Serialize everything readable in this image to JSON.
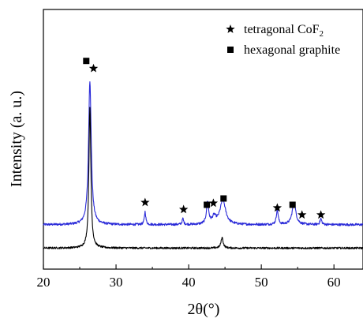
{
  "chart_data": {
    "type": "line",
    "xlabel": "2θ(°)",
    "ylabel": "Intensity (a. u.)",
    "xlim": [
      20,
      64
    ],
    "x_ticks": [
      "20",
      "30",
      "40",
      "50",
      "60"
    ],
    "x_tick_values": [
      20,
      30,
      40,
      50,
      60
    ],
    "y_ticks_shown": false,
    "legend": {
      "placement": "top-right",
      "entries": [
        {
          "marker": "star",
          "label_main": "tetragonal CoF",
          "label_sub": "2"
        },
        {
          "marker": "square",
          "label_main": "hexagonal graphite",
          "label_sub": ""
        }
      ]
    },
    "series": [
      {
        "color": "#2a2ad8",
        "baseline": 1.0,
        "noise": 0.05,
        "peaks": [
          {
            "x": 26.4,
            "height": 6.15,
            "width": 0.22
          },
          {
            "x": 34.0,
            "height": 0.55,
            "width": 0.12
          },
          {
            "x": 39.2,
            "height": 0.25,
            "width": 0.12
          },
          {
            "x": 42.6,
            "height": 0.95,
            "width": 0.18
          },
          {
            "x": 43.5,
            "height": 0.3,
            "width": 0.3
          },
          {
            "x": 44.7,
            "height": 1.05,
            "width": 0.45
          },
          {
            "x": 52.2,
            "height": 0.65,
            "width": 0.15
          },
          {
            "x": 54.5,
            "height": 0.95,
            "width": 0.3
          },
          {
            "x": 58.2,
            "height": 0.25,
            "width": 0.14
          }
        ]
      },
      {
        "color": "#000000",
        "baseline": 0.0,
        "noise": 0.04,
        "peaks": [
          {
            "x": 26.4,
            "height": 6.05,
            "width": 0.16
          },
          {
            "x": 44.6,
            "height": 0.45,
            "width": 0.18
          }
        ]
      }
    ],
    "annotations": [
      {
        "marker": "square",
        "x": 25.9,
        "y": 8.0
      },
      {
        "marker": "star",
        "x": 26.9,
        "y": 7.68
      },
      {
        "marker": "star",
        "x": 34.0,
        "y": 1.95
      },
      {
        "marker": "star",
        "x": 39.3,
        "y": 1.65
      },
      {
        "marker": "square",
        "x": 42.5,
        "y": 1.85
      },
      {
        "marker": "star",
        "x": 43.4,
        "y": 1.92
      },
      {
        "marker": "square",
        "x": 44.8,
        "y": 2.12
      },
      {
        "marker": "star",
        "x": 52.2,
        "y": 1.72
      },
      {
        "marker": "square",
        "x": 54.3,
        "y": 1.85
      },
      {
        "marker": "star",
        "x": 55.6,
        "y": 1.42
      },
      {
        "marker": "star",
        "x": 58.2,
        "y": 1.42
      }
    ],
    "ylim": [
      -0.9,
      10.2
    ],
    "grid": false
  }
}
